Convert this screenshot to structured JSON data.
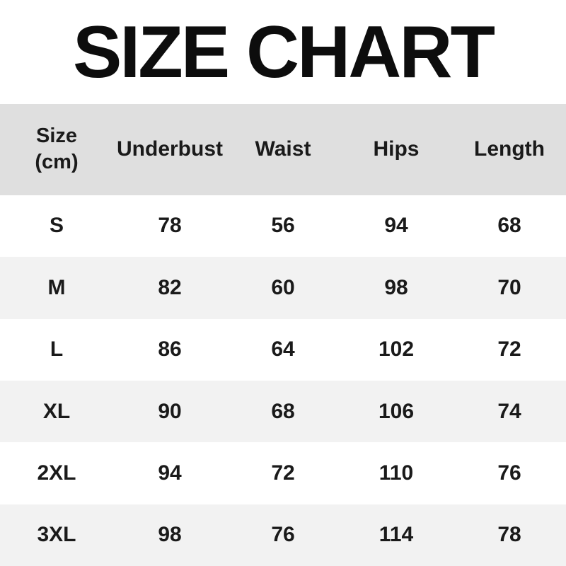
{
  "page": {
    "title": "SIZE CHART"
  },
  "colors": {
    "header_bg": "#dfdfdf",
    "alt_row_bg": "#f2f2f2",
    "row_bg": "#ffffff",
    "text": "#1a1a1a",
    "title_text": "#0d0d0d"
  },
  "labels": {
    "size_line1": "Size",
    "size_line2": "(cm)",
    "underbust": "Underbust",
    "waist": "Waist",
    "hips": "Hips",
    "length": "Length"
  },
  "chart_data": {
    "type": "table",
    "title": "SIZE CHART",
    "unit": "cm",
    "columns": [
      "Size (cm)",
      "Underbust",
      "Waist",
      "Hips",
      "Length"
    ],
    "rows": [
      {
        "size": "S",
        "underbust": 78,
        "waist": 56,
        "hips": 94,
        "length": 68
      },
      {
        "size": "M",
        "underbust": 82,
        "waist": 60,
        "hips": 98,
        "length": 70
      },
      {
        "size": "L",
        "underbust": 86,
        "waist": 64,
        "hips": 102,
        "length": 72
      },
      {
        "size": "XL",
        "underbust": 90,
        "waist": 68,
        "hips": 106,
        "length": 74
      },
      {
        "size": "2XL",
        "underbust": 94,
        "waist": 72,
        "hips": 110,
        "length": 76
      },
      {
        "size": "3XL",
        "underbust": 98,
        "waist": 76,
        "hips": 114,
        "length": 78
      }
    ]
  }
}
